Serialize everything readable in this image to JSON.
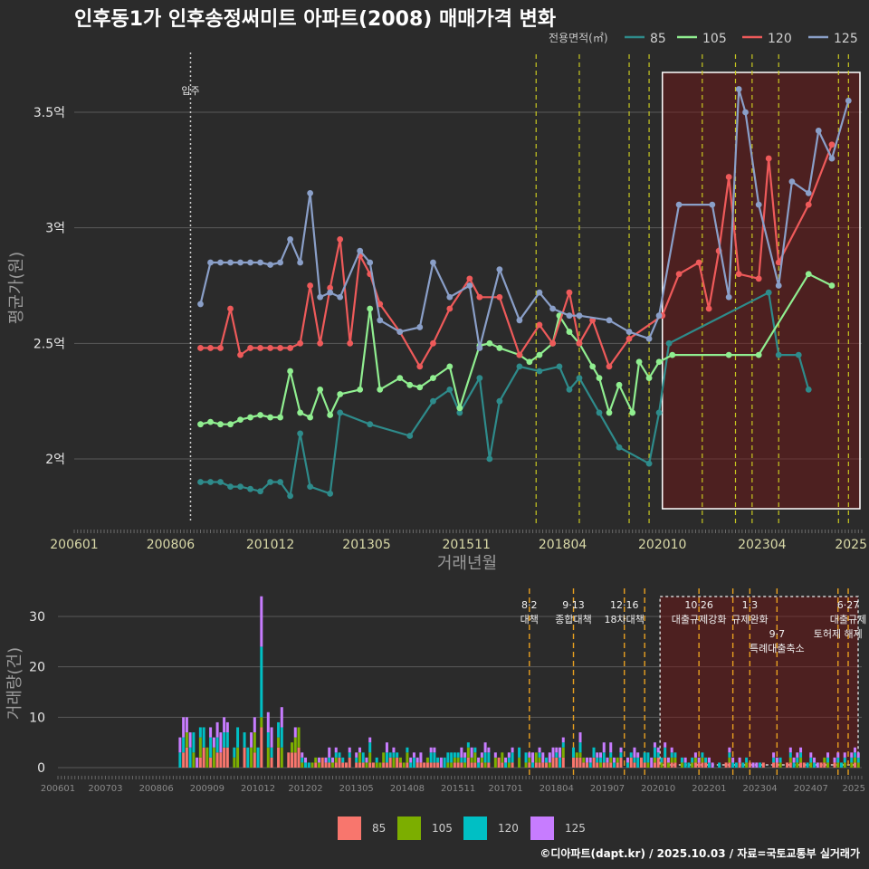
{
  "chart_data": [
    {
      "type": "line",
      "title": "인후동1가 인후송정써미트 아파트(2008) 매매가격 변화",
      "xlabel": "거래년월",
      "ylabel": "평균가(원)",
      "x_ticks": [
        "200601",
        "200806",
        "201012",
        "201305",
        "201511",
        "201804",
        "202010",
        "202304",
        "2025"
      ],
      "y_ticks": [
        {
          "value": 2.0,
          "label": "2억"
        },
        {
          "value": 2.5,
          "label": "2.5억"
        },
        {
          "value": 3.0,
          "label": "3억"
        },
        {
          "value": 3.5,
          "label": "3.5억"
        }
      ],
      "ylim": [
        1.77,
        3.77
      ],
      "legend": {
        "title": "전용면적(㎡)",
        "position": "top-right"
      },
      "annotations": [
        {
          "label": "입주",
          "x": "2008-12"
        }
      ],
      "highlight_range": [
        "2020-10",
        "2025-10"
      ],
      "series": [
        {
          "name": "85",
          "color": "#2e8b8b",
          "points": [
            [
              "2009-03",
              1.9
            ],
            [
              "2009-06",
              1.9
            ],
            [
              "2009-09",
              1.9
            ],
            [
              "2009-12",
              1.88
            ],
            [
              "2010-03",
              1.88
            ],
            [
              "2010-06",
              1.87
            ],
            [
              "2010-09",
              1.86
            ],
            [
              "2010-12",
              1.9
            ],
            [
              "2011-03",
              1.9
            ],
            [
              "2011-06",
              1.84
            ],
            [
              "2011-09",
              2.11
            ],
            [
              "2011-12",
              1.88
            ],
            [
              "2012-06",
              1.85
            ],
            [
              "2012-09",
              2.2
            ],
            [
              "2013-06",
              2.15
            ],
            [
              "2014-06",
              2.1
            ],
            [
              "2015-01",
              2.25
            ],
            [
              "2015-06",
              2.3
            ],
            [
              "2015-09",
              2.2
            ],
            [
              "2016-03",
              2.35
            ],
            [
              "2016-06",
              2.0
            ],
            [
              "2016-09",
              2.25
            ],
            [
              "2017-03",
              2.4
            ],
            [
              "2017-09",
              2.38
            ],
            [
              "2018-03",
              2.4
            ],
            [
              "2018-06",
              2.3
            ],
            [
              "2018-09",
              2.35
            ],
            [
              "2019-03",
              2.2
            ],
            [
              "2019-09",
              2.05
            ],
            [
              "2020-06",
              1.98
            ],
            [
              "2020-09",
              2.2
            ],
            [
              "2020-12",
              2.5
            ],
            [
              "2023-06",
              2.72
            ],
            [
              "2023-09",
              2.45
            ],
            [
              "2024-03",
              2.45
            ],
            [
              "2024-06",
              2.3
            ]
          ]
        },
        {
          "name": "105",
          "color": "#90ee90",
          "points": [
            [
              "2009-03",
              2.15
            ],
            [
              "2009-06",
              2.16
            ],
            [
              "2009-09",
              2.15
            ],
            [
              "2009-12",
              2.15
            ],
            [
              "2010-03",
              2.17
            ],
            [
              "2010-06",
              2.18
            ],
            [
              "2010-09",
              2.19
            ],
            [
              "2010-12",
              2.18
            ],
            [
              "2011-03",
              2.18
            ],
            [
              "2011-06",
              2.38
            ],
            [
              "2011-09",
              2.2
            ],
            [
              "2011-12",
              2.18
            ],
            [
              "2012-03",
              2.3
            ],
            [
              "2012-06",
              2.19
            ],
            [
              "2012-09",
              2.28
            ],
            [
              "2013-03",
              2.3
            ],
            [
              "2013-06",
              2.65
            ],
            [
              "2013-09",
              2.3
            ],
            [
              "2014-03",
              2.35
            ],
            [
              "2014-06",
              2.32
            ],
            [
              "2014-09",
              2.31
            ],
            [
              "2015-01",
              2.35
            ],
            [
              "2015-06",
              2.4
            ],
            [
              "2015-09",
              2.22
            ],
            [
              "2016-03",
              2.49
            ],
            [
              "2016-06",
              2.5
            ],
            [
              "2016-09",
              2.48
            ],
            [
              "2017-03",
              2.45
            ],
            [
              "2017-06",
              2.42
            ],
            [
              "2017-09",
              2.45
            ],
            [
              "2018-01",
              2.5
            ],
            [
              "2018-03",
              2.62
            ],
            [
              "2018-06",
              2.55
            ],
            [
              "2018-09",
              2.5
            ],
            [
              "2019-01",
              2.4
            ],
            [
              "2019-03",
              2.35
            ],
            [
              "2019-06",
              2.2
            ],
            [
              "2019-09",
              2.32
            ],
            [
              "2020-01",
              2.2
            ],
            [
              "2020-03",
              2.42
            ],
            [
              "2020-06",
              2.35
            ],
            [
              "2020-09",
              2.42
            ],
            [
              "2021-01",
              2.45
            ],
            [
              "2022-06",
              2.45
            ],
            [
              "2023-03",
              2.45
            ],
            [
              "2024-06",
              2.8
            ],
            [
              "2025-01",
              2.75
            ]
          ]
        },
        {
          "name": "120",
          "color": "#ee5a5a",
          "points": [
            [
              "2009-03",
              2.48
            ],
            [
              "2009-06",
              2.48
            ],
            [
              "2009-09",
              2.48
            ],
            [
              "2009-12",
              2.65
            ],
            [
              "2010-03",
              2.45
            ],
            [
              "2010-06",
              2.48
            ],
            [
              "2010-09",
              2.48
            ],
            [
              "2010-12",
              2.48
            ],
            [
              "2011-03",
              2.48
            ],
            [
              "2011-06",
              2.48
            ],
            [
              "2011-09",
              2.5
            ],
            [
              "2011-12",
              2.75
            ],
            [
              "2012-03",
              2.5
            ],
            [
              "2012-06",
              2.74
            ],
            [
              "2012-09",
              2.95
            ],
            [
              "2012-12",
              2.5
            ],
            [
              "2013-03",
              2.88
            ],
            [
              "2013-06",
              2.8
            ],
            [
              "2013-09",
              2.67
            ],
            [
              "2014-03",
              2.55
            ],
            [
              "2014-09",
              2.4
            ],
            [
              "2015-01",
              2.5
            ],
            [
              "2015-06",
              2.65
            ],
            [
              "2015-12",
              2.78
            ],
            [
              "2016-03",
              2.7
            ],
            [
              "2016-09",
              2.7
            ],
            [
              "2017-03",
              2.45
            ],
            [
              "2017-09",
              2.58
            ],
            [
              "2018-01",
              2.5
            ],
            [
              "2018-06",
              2.72
            ],
            [
              "2018-09",
              2.5
            ],
            [
              "2019-01",
              2.6
            ],
            [
              "2019-06",
              2.4
            ],
            [
              "2019-12",
              2.52
            ],
            [
              "2020-10",
              2.62
            ],
            [
              "2021-03",
              2.8
            ],
            [
              "2021-09",
              2.85
            ],
            [
              "2021-12",
              2.65
            ],
            [
              "2022-03",
              2.9
            ],
            [
              "2022-06",
              3.22
            ],
            [
              "2022-09",
              2.8
            ],
            [
              "2023-03",
              2.78
            ],
            [
              "2023-06",
              3.3
            ],
            [
              "2023-09",
              2.85
            ],
            [
              "2024-06",
              3.1
            ],
            [
              "2025-01",
              3.36
            ]
          ]
        },
        {
          "name": "125",
          "color": "#8a9fc8",
          "points": [
            [
              "2009-03",
              2.67
            ],
            [
              "2009-06",
              2.85
            ],
            [
              "2009-09",
              2.85
            ],
            [
              "2009-12",
              2.85
            ],
            [
              "2010-03",
              2.85
            ],
            [
              "2010-06",
              2.85
            ],
            [
              "2010-09",
              2.85
            ],
            [
              "2010-12",
              2.84
            ],
            [
              "2011-03",
              2.85
            ],
            [
              "2011-06",
              2.95
            ],
            [
              "2011-09",
              2.85
            ],
            [
              "2011-12",
              3.15
            ],
            [
              "2012-03",
              2.7
            ],
            [
              "2012-06",
              2.72
            ],
            [
              "2012-09",
              2.7
            ],
            [
              "2013-03",
              2.9
            ],
            [
              "2013-06",
              2.85
            ],
            [
              "2013-09",
              2.6
            ],
            [
              "2014-03",
              2.55
            ],
            [
              "2014-09",
              2.57
            ],
            [
              "2015-01",
              2.85
            ],
            [
              "2015-06",
              2.7
            ],
            [
              "2015-12",
              2.75
            ],
            [
              "2016-03",
              2.48
            ],
            [
              "2016-09",
              2.82
            ],
            [
              "2017-03",
              2.6
            ],
            [
              "2017-09",
              2.72
            ],
            [
              "2018-01",
              2.65
            ],
            [
              "2018-06",
              2.62
            ],
            [
              "2018-09",
              2.62
            ],
            [
              "2019-06",
              2.6
            ],
            [
              "2019-12",
              2.55
            ],
            [
              "2020-06",
              2.52
            ],
            [
              "2020-09",
              2.62
            ],
            [
              "2021-03",
              3.1
            ],
            [
              "2022-01",
              3.1
            ],
            [
              "2022-06",
              2.7
            ],
            [
              "2022-09",
              3.6
            ],
            [
              "2022-11",
              3.5
            ],
            [
              "2023-03",
              3.1
            ],
            [
              "2023-09",
              2.75
            ],
            [
              "2024-01",
              3.2
            ],
            [
              "2024-06",
              3.15
            ],
            [
              "2024-09",
              3.42
            ],
            [
              "2025-01",
              3.3
            ],
            [
              "2025-06",
              3.55
            ]
          ]
        }
      ]
    },
    {
      "type": "bar",
      "stacked": true,
      "ylabel": "거래량(건)",
      "x_ticks": [
        "200601",
        "200703",
        "200806",
        "200909",
        "201012",
        "201202",
        "201305",
        "201408",
        "201511",
        "201701",
        "201804",
        "201907",
        "202010",
        "202201",
        "202304",
        "202407",
        "2025"
      ],
      "y_ticks": [
        0,
        10,
        20,
        30
      ],
      "ylim": [
        0,
        35
      ],
      "legend": {
        "position": "bottom",
        "entries": [
          {
            "name": "85",
            "color": "#f8766d"
          },
          {
            "name": "105",
            "color": "#7cae00"
          },
          {
            "name": "120",
            "color": "#00bfc4"
          },
          {
            "name": "125",
            "color": "#c77cff"
          }
        ]
      },
      "highlight_range": [
        "2020-10",
        "2025-10"
      ],
      "policy_events": [
        {
          "x": "2017-08",
          "date": "8·2",
          "label": "대책",
          "row": 0
        },
        {
          "x": "2018-09",
          "date": "9·13",
          "label": "종합대책",
          "row": 0
        },
        {
          "x": "2019-12",
          "date": "12·16",
          "label": "18차대책",
          "row": 0
        },
        {
          "x": "2020-06",
          "date": "",
          "label": "",
          "row": 0
        },
        {
          "x": "2021-10",
          "date": "10·26",
          "label": "대출규제강화",
          "row": 0
        },
        {
          "x": "2022-08",
          "date": "",
          "label": "",
          "row": 0
        },
        {
          "x": "2023-01",
          "date": "1·3",
          "label": "규제완화",
          "row": 0
        },
        {
          "x": "2023-09",
          "date": "9·7",
          "label": "특례대출축소",
          "row": 1
        },
        {
          "x": "2025-03",
          "date": "",
          "label": "토허제 해제",
          "row": 1
        },
        {
          "x": "2025-06",
          "date": "6·27",
          "label": "대출규제",
          "row": 0
        }
      ],
      "peak": {
        "x": "2011-01",
        "values": {
          "85": 8,
          "105": 2,
          "120": 14,
          "125": 10
        }
      },
      "monthly_volume_level": {
        "2009-2011": 5,
        "2012-2016": 2,
        "2017-2020": 2,
        "2021-2025": 1
      }
    }
  ],
  "footer": "©디아파트(dapt.kr) / 2025.10.03 / 자료=국토교통부 실거래가"
}
